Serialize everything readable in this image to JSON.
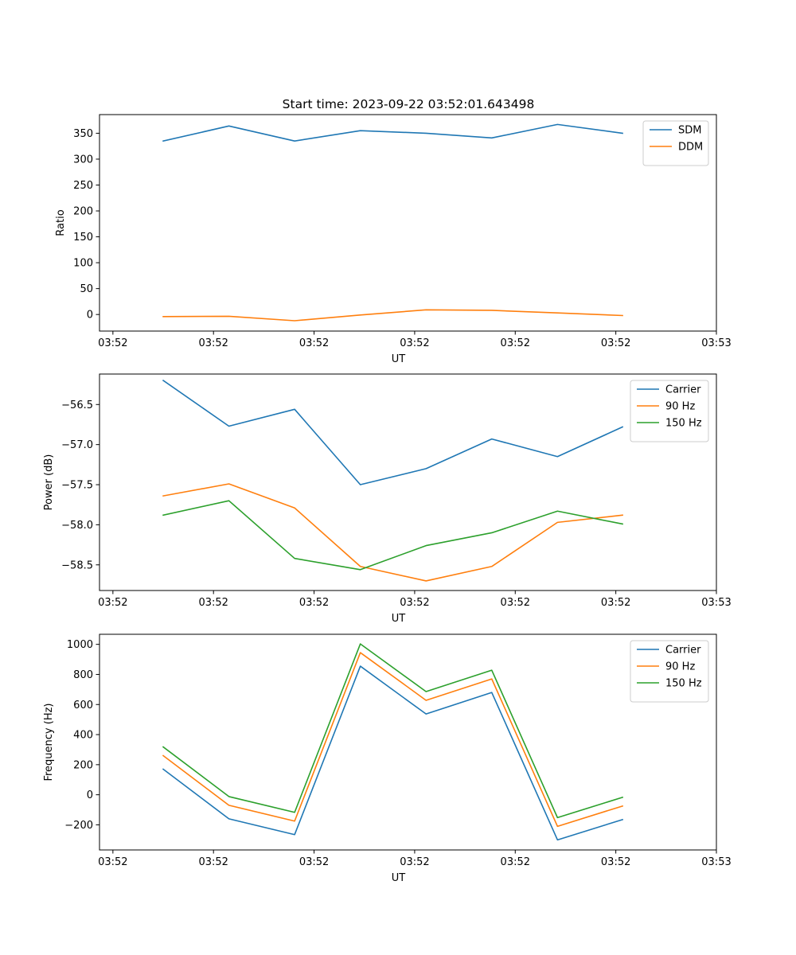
{
  "figure": {
    "title": "Start time: 2023-09-22 03:52:01.643498"
  },
  "colors": {
    "blue": "#1f77b4",
    "orange": "#ff7f0e",
    "green": "#2ca02c"
  },
  "chart_data": [
    {
      "type": "line",
      "title": "Start time: 2023-09-22 03:52:01.643498",
      "xlabel": "UT",
      "ylabel": "Ratio",
      "xlim": [
        -0.1,
        4.5
      ],
      "ylim": [
        -32,
        386
      ],
      "xticks": [
        0,
        0.75,
        1.5,
        2.25,
        3.0,
        3.75,
        4.5
      ],
      "xtick_labels": [
        "03:52",
        "03:52",
        "03:52",
        "03:52",
        "03:52",
        "03:52",
        "03:53"
      ],
      "yticks": [
        0,
        50,
        100,
        150,
        200,
        250,
        300,
        350
      ],
      "x": [
        0.375,
        0.865,
        1.355,
        1.845,
        2.335,
        2.825,
        3.315,
        3.8
      ],
      "legend_location": "upper right",
      "series": [
        {
          "name": "SDM",
          "color": "#1f77b4",
          "values": [
            335,
            364,
            335,
            355,
            350,
            341,
            367,
            350
          ]
        },
        {
          "name": "DDM",
          "color": "#ff7f0e",
          "values": [
            -4,
            -3.5,
            -12,
            -1,
            9,
            8,
            3,
            -2
          ]
        }
      ]
    },
    {
      "type": "line",
      "title": "",
      "xlabel": "UT",
      "ylabel": "Power (dB)",
      "xlim": [
        -0.1,
        4.5
      ],
      "ylim": [
        -58.82,
        -56.12
      ],
      "xticks": [
        0,
        0.75,
        1.5,
        2.25,
        3.0,
        3.75,
        4.5
      ],
      "xtick_labels": [
        "03:52",
        "03:52",
        "03:52",
        "03:52",
        "03:52",
        "03:52",
        "03:53"
      ],
      "yticks": [
        -58.5,
        -58.0,
        -57.5,
        -57.0,
        -56.5
      ],
      "ytick_labels": [
        "−58.5",
        "−58.0",
        "−57.5",
        "−57.0",
        "−56.5"
      ],
      "x": [
        0.375,
        0.865,
        1.355,
        1.845,
        2.335,
        2.825,
        3.315,
        3.8
      ],
      "legend_location": "upper right",
      "series": [
        {
          "name": "Carrier",
          "color": "#1f77b4",
          "values": [
            -56.2,
            -56.77,
            -56.56,
            -57.5,
            -57.3,
            -56.93,
            -57.15,
            -56.78
          ]
        },
        {
          "name": "90 Hz",
          "color": "#ff7f0e",
          "values": [
            -57.64,
            -57.49,
            -57.79,
            -58.52,
            -58.7,
            -58.52,
            -57.97,
            -57.88
          ]
        },
        {
          "name": "150 Hz",
          "color": "#2ca02c",
          "values": [
            -57.88,
            -57.7,
            -58.42,
            -58.56,
            -58.26,
            -58.1,
            -57.83,
            -57.99
          ]
        }
      ]
    },
    {
      "type": "line",
      "title": "",
      "xlabel": "UT",
      "ylabel": "Frequency (Hz)",
      "xlim": [
        -0.1,
        4.5
      ],
      "ylim": [
        -367,
        1067
      ],
      "xticks": [
        0,
        0.75,
        1.5,
        2.25,
        3.0,
        3.75,
        4.5
      ],
      "xtick_labels": [
        "03:52",
        "03:52",
        "03:52",
        "03:52",
        "03:52",
        "03:52",
        "03:53"
      ],
      "yticks": [
        -200,
        0,
        200,
        400,
        600,
        800,
        1000
      ],
      "ytick_labels": [
        "−200",
        "0",
        "200",
        "400",
        "600",
        "800",
        "1000"
      ],
      "x": [
        0.375,
        0.865,
        1.355,
        1.845,
        2.335,
        2.825,
        3.315,
        3.8
      ],
      "legend_location": "upper right",
      "series": [
        {
          "name": "Carrier",
          "color": "#1f77b4",
          "values": [
            170,
            -160,
            -265,
            855,
            537,
            680,
            -300,
            -165
          ]
        },
        {
          "name": "90 Hz",
          "color": "#ff7f0e",
          "values": [
            260,
            -70,
            -175,
            945,
            628,
            770,
            -210,
            -75
          ]
        },
        {
          "name": "150 Hz",
          "color": "#2ca02c",
          "values": [
            318,
            -12,
            -117,
            1003,
            686,
            828,
            -152,
            -17
          ]
        }
      ]
    }
  ]
}
